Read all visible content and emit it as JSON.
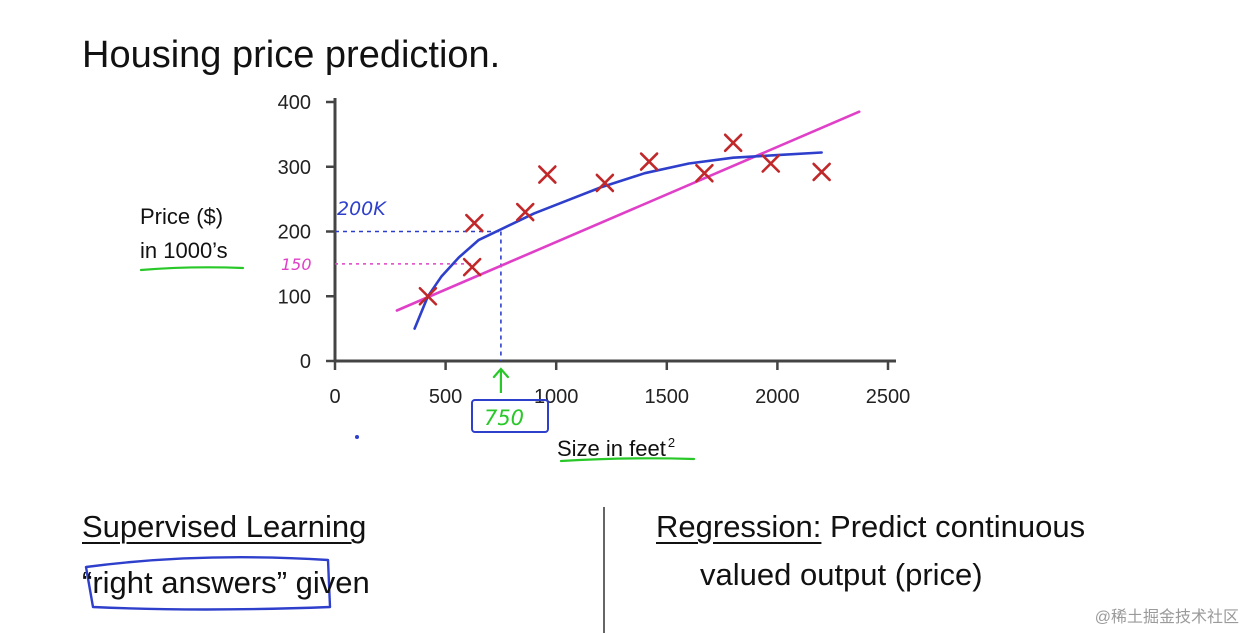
{
  "slide": {
    "title": "Housing price prediction."
  },
  "chart_data": {
    "type": "scatter",
    "xlabel": "Size in feet",
    "xlabel_superscript": "2",
    "ylabel_line1": "Price ($)",
    "ylabel_line2": "in 1000’s",
    "xlim": [
      0,
      2500
    ],
    "ylim": [
      0,
      400
    ],
    "x_ticks": [
      0,
      500,
      1000,
      1500,
      2000,
      2500
    ],
    "y_ticks": [
      0,
      100,
      200,
      300,
      400
    ],
    "grid": false,
    "points": [
      {
        "x": 420,
        "y": 100
      },
      {
        "x": 620,
        "y": 145
      },
      {
        "x": 630,
        "y": 213
      },
      {
        "x": 860,
        "y": 230
      },
      {
        "x": 960,
        "y": 288
      },
      {
        "x": 1220,
        "y": 275
      },
      {
        "x": 1420,
        "y": 308
      },
      {
        "x": 1670,
        "y": 290
      },
      {
        "x": 1800,
        "y": 337
      },
      {
        "x": 1970,
        "y": 305
      },
      {
        "x": 2200,
        "y": 292
      }
    ],
    "fits": [
      {
        "kind": "straight-line",
        "color": "#e040c8",
        "x": [
          280,
          2370
        ],
        "y": [
          78,
          385
        ]
      },
      {
        "kind": "curve",
        "color": "#2e3fcc",
        "x": [
          360,
          420,
          480,
          560,
          650,
          760,
          900,
          1050,
          1200,
          1400,
          1600,
          1800,
          2000,
          2200
        ],
        "y": [
          50,
          100,
          130,
          160,
          187,
          205,
          228,
          248,
          268,
          290,
          305,
          314,
          318,
          322
        ]
      }
    ],
    "annotations": {
      "query_x": "750",
      "prediction_curve": "200K",
      "prediction_line": "150",
      "query_x_value": 750,
      "prediction_curve_value": 200,
      "prediction_line_value": 150
    },
    "colors": {
      "axis": "#444444",
      "cross": "#c0282a",
      "curve": "#2e3fcc",
      "line": "#e040c8",
      "green": "#28c828"
    }
  },
  "bottom": {
    "left_heading": "Supervised Learning",
    "left_quoted": "right answers",
    "left_after": "given",
    "right_heading": "Regression:",
    "right_rest": "Predict continuous",
    "right_line2": "valued output (price)"
  },
  "watermark": "@稀土掘金技术社区"
}
